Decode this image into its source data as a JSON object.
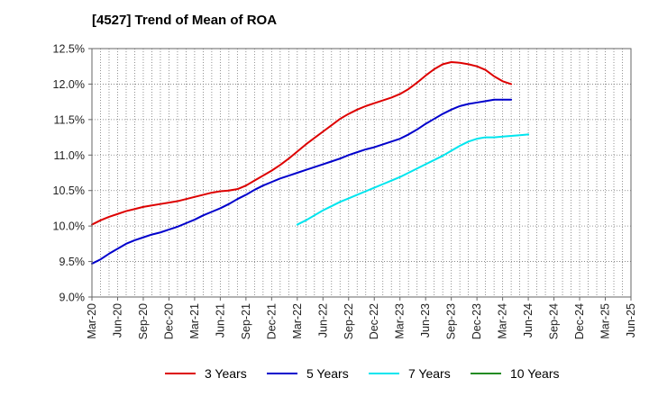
{
  "title": "[4527]  Trend of Mean of ROA",
  "chart_data": {
    "type": "line",
    "title": "[4527]  Trend of Mean of ROA",
    "xlabel": "",
    "ylabel": "",
    "ylim": [
      9.0,
      12.5
    ],
    "y_ticks": [
      "9.0%",
      "9.5%",
      "10.0%",
      "10.5%",
      "11.0%",
      "11.5%",
      "12.0%",
      "12.5%"
    ],
    "x_ticks": [
      "Mar-20",
      "Jun-20",
      "Sep-20",
      "Dec-20",
      "Mar-21",
      "Jun-21",
      "Sep-21",
      "Dec-21",
      "Mar-22",
      "Jun-22",
      "Sep-22",
      "Dec-22",
      "Mar-23",
      "Jun-23",
      "Sep-23",
      "Dec-23",
      "Mar-24",
      "Jun-24",
      "Sep-24",
      "Dec-24",
      "Mar-25",
      "Jun-25"
    ],
    "grid": true,
    "legend_position": "bottom",
    "series": [
      {
        "name": "3 Years",
        "color": "#dd0000",
        "start": "Mar-20",
        "values": [
          10.02,
          10.08,
          10.13,
          10.17,
          10.21,
          10.24,
          10.27,
          10.29,
          10.31,
          10.33,
          10.35,
          10.38,
          10.41,
          10.44,
          10.47,
          10.49,
          10.5,
          10.52,
          10.57,
          10.64,
          10.71,
          10.78,
          10.86,
          10.95,
          11.05,
          11.15,
          11.24,
          11.33,
          11.42,
          11.51,
          11.58,
          11.64,
          11.69,
          11.73,
          11.77,
          11.81,
          11.86,
          11.93,
          12.02,
          12.12,
          12.21,
          12.28,
          12.31,
          12.3,
          12.28,
          12.25,
          12.2,
          12.11,
          12.04,
          12.0
        ]
      },
      {
        "name": "5 Years",
        "color": "#0000cc",
        "start": "Mar-20",
        "values": [
          9.47,
          9.53,
          9.61,
          9.68,
          9.75,
          9.8,
          9.84,
          9.88,
          9.91,
          9.95,
          9.99,
          10.04,
          10.09,
          10.15,
          10.2,
          10.25,
          10.31,
          10.38,
          10.44,
          10.51,
          10.57,
          10.62,
          10.67,
          10.71,
          10.75,
          10.79,
          10.83,
          10.87,
          10.91,
          10.95,
          11.0,
          11.04,
          11.08,
          11.11,
          11.15,
          11.19,
          11.23,
          11.29,
          11.36,
          11.44,
          11.51,
          11.58,
          11.64,
          11.69,
          11.72,
          11.74,
          11.76,
          11.78,
          11.78,
          11.78
        ]
      },
      {
        "name": "7 Years",
        "color": "#00e5ee",
        "start": "Mar-22",
        "values": [
          10.02,
          10.08,
          10.15,
          10.22,
          10.28,
          10.34,
          10.39,
          10.44,
          10.49,
          10.54,
          10.59,
          10.64,
          10.69,
          10.75,
          10.81,
          10.87,
          10.93,
          10.99,
          11.06,
          11.13,
          11.19,
          11.23,
          11.25,
          11.25,
          11.26,
          11.27,
          11.28,
          11.29
        ]
      },
      {
        "name": "10 Years",
        "color": "#228b22",
        "start": "",
        "values": []
      }
    ]
  }
}
